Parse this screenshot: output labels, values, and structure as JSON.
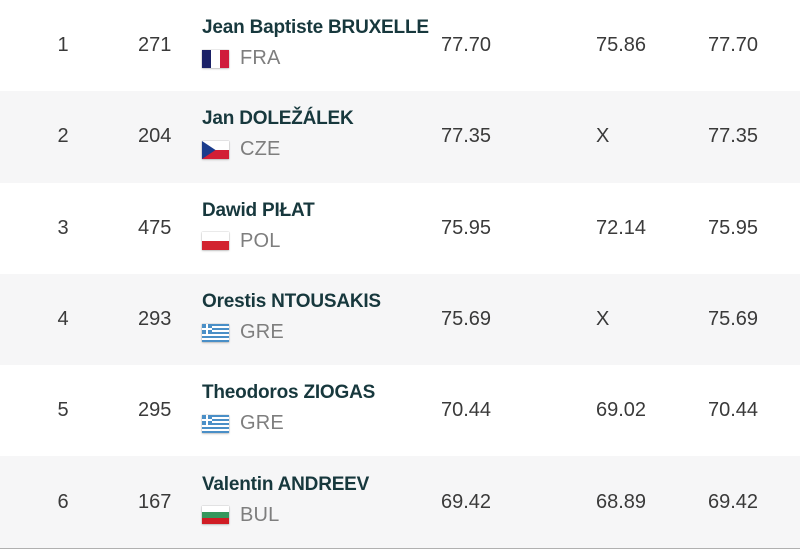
{
  "table": {
    "rows": [
      {
        "rank": "1",
        "bib": "271",
        "name": "Jean Baptiste BRUXELLE",
        "country_code": "FRA",
        "flag_icon": "flag-fra-icon",
        "marks": [
          "77.70",
          "75.86",
          "77.70"
        ]
      },
      {
        "rank": "2",
        "bib": "204",
        "name": "Jan DOLEŽÁLEK",
        "country_code": "CZE",
        "flag_icon": "flag-cze-icon",
        "marks": [
          "77.35",
          "X",
          "77.35"
        ]
      },
      {
        "rank": "3",
        "bib": "475",
        "name": "Dawid PIŁAT",
        "country_code": "POL",
        "flag_icon": "flag-pol-icon",
        "marks": [
          "75.95",
          "72.14",
          "75.95"
        ]
      },
      {
        "rank": "4",
        "bib": "293",
        "name": "Orestis NTOUSAKIS",
        "country_code": "GRE",
        "flag_icon": "flag-gre-icon",
        "marks": [
          "75.69",
          "X",
          "75.69"
        ]
      },
      {
        "rank": "5",
        "bib": "295",
        "name": "Theodoros ZIOGAS",
        "country_code": "GRE",
        "flag_icon": "flag-gre-icon",
        "marks": [
          "70.44",
          "69.02",
          "70.44"
        ]
      },
      {
        "rank": "6",
        "bib": "167",
        "name": "Valentin ANDREEV",
        "country_code": "BUL",
        "flag_icon": "flag-bul-icon",
        "marks": [
          "69.42",
          "68.89",
          "69.42"
        ]
      }
    ]
  },
  "colors": {
    "name_text": "#17383d",
    "value_text": "#3a3a3a",
    "country_code_text": "#7e7e7e",
    "row_stripe": "#f6f6f7",
    "row_plain": "#ffffff",
    "bottom_rule": "#b0b0b0"
  },
  "flags": {
    "FRA": {
      "type": "vertical",
      "colors": [
        "#1a2066",
        "#ffffff",
        "#d01c3c"
      ]
    },
    "CZE": {
      "type": "cze",
      "colors": [
        "#ffffff",
        "#d21f35",
        "#1b3c8c"
      ]
    },
    "POL": {
      "type": "horizontal",
      "colors": [
        "#ffffff",
        "#d2232f"
      ]
    },
    "GRE": {
      "type": "gre",
      "colors": [
        "#4a8fc7",
        "#ffffff"
      ]
    },
    "BUL": {
      "type": "horizontal",
      "colors": [
        "#ffffff",
        "#35975c",
        "#d01c24"
      ]
    }
  }
}
